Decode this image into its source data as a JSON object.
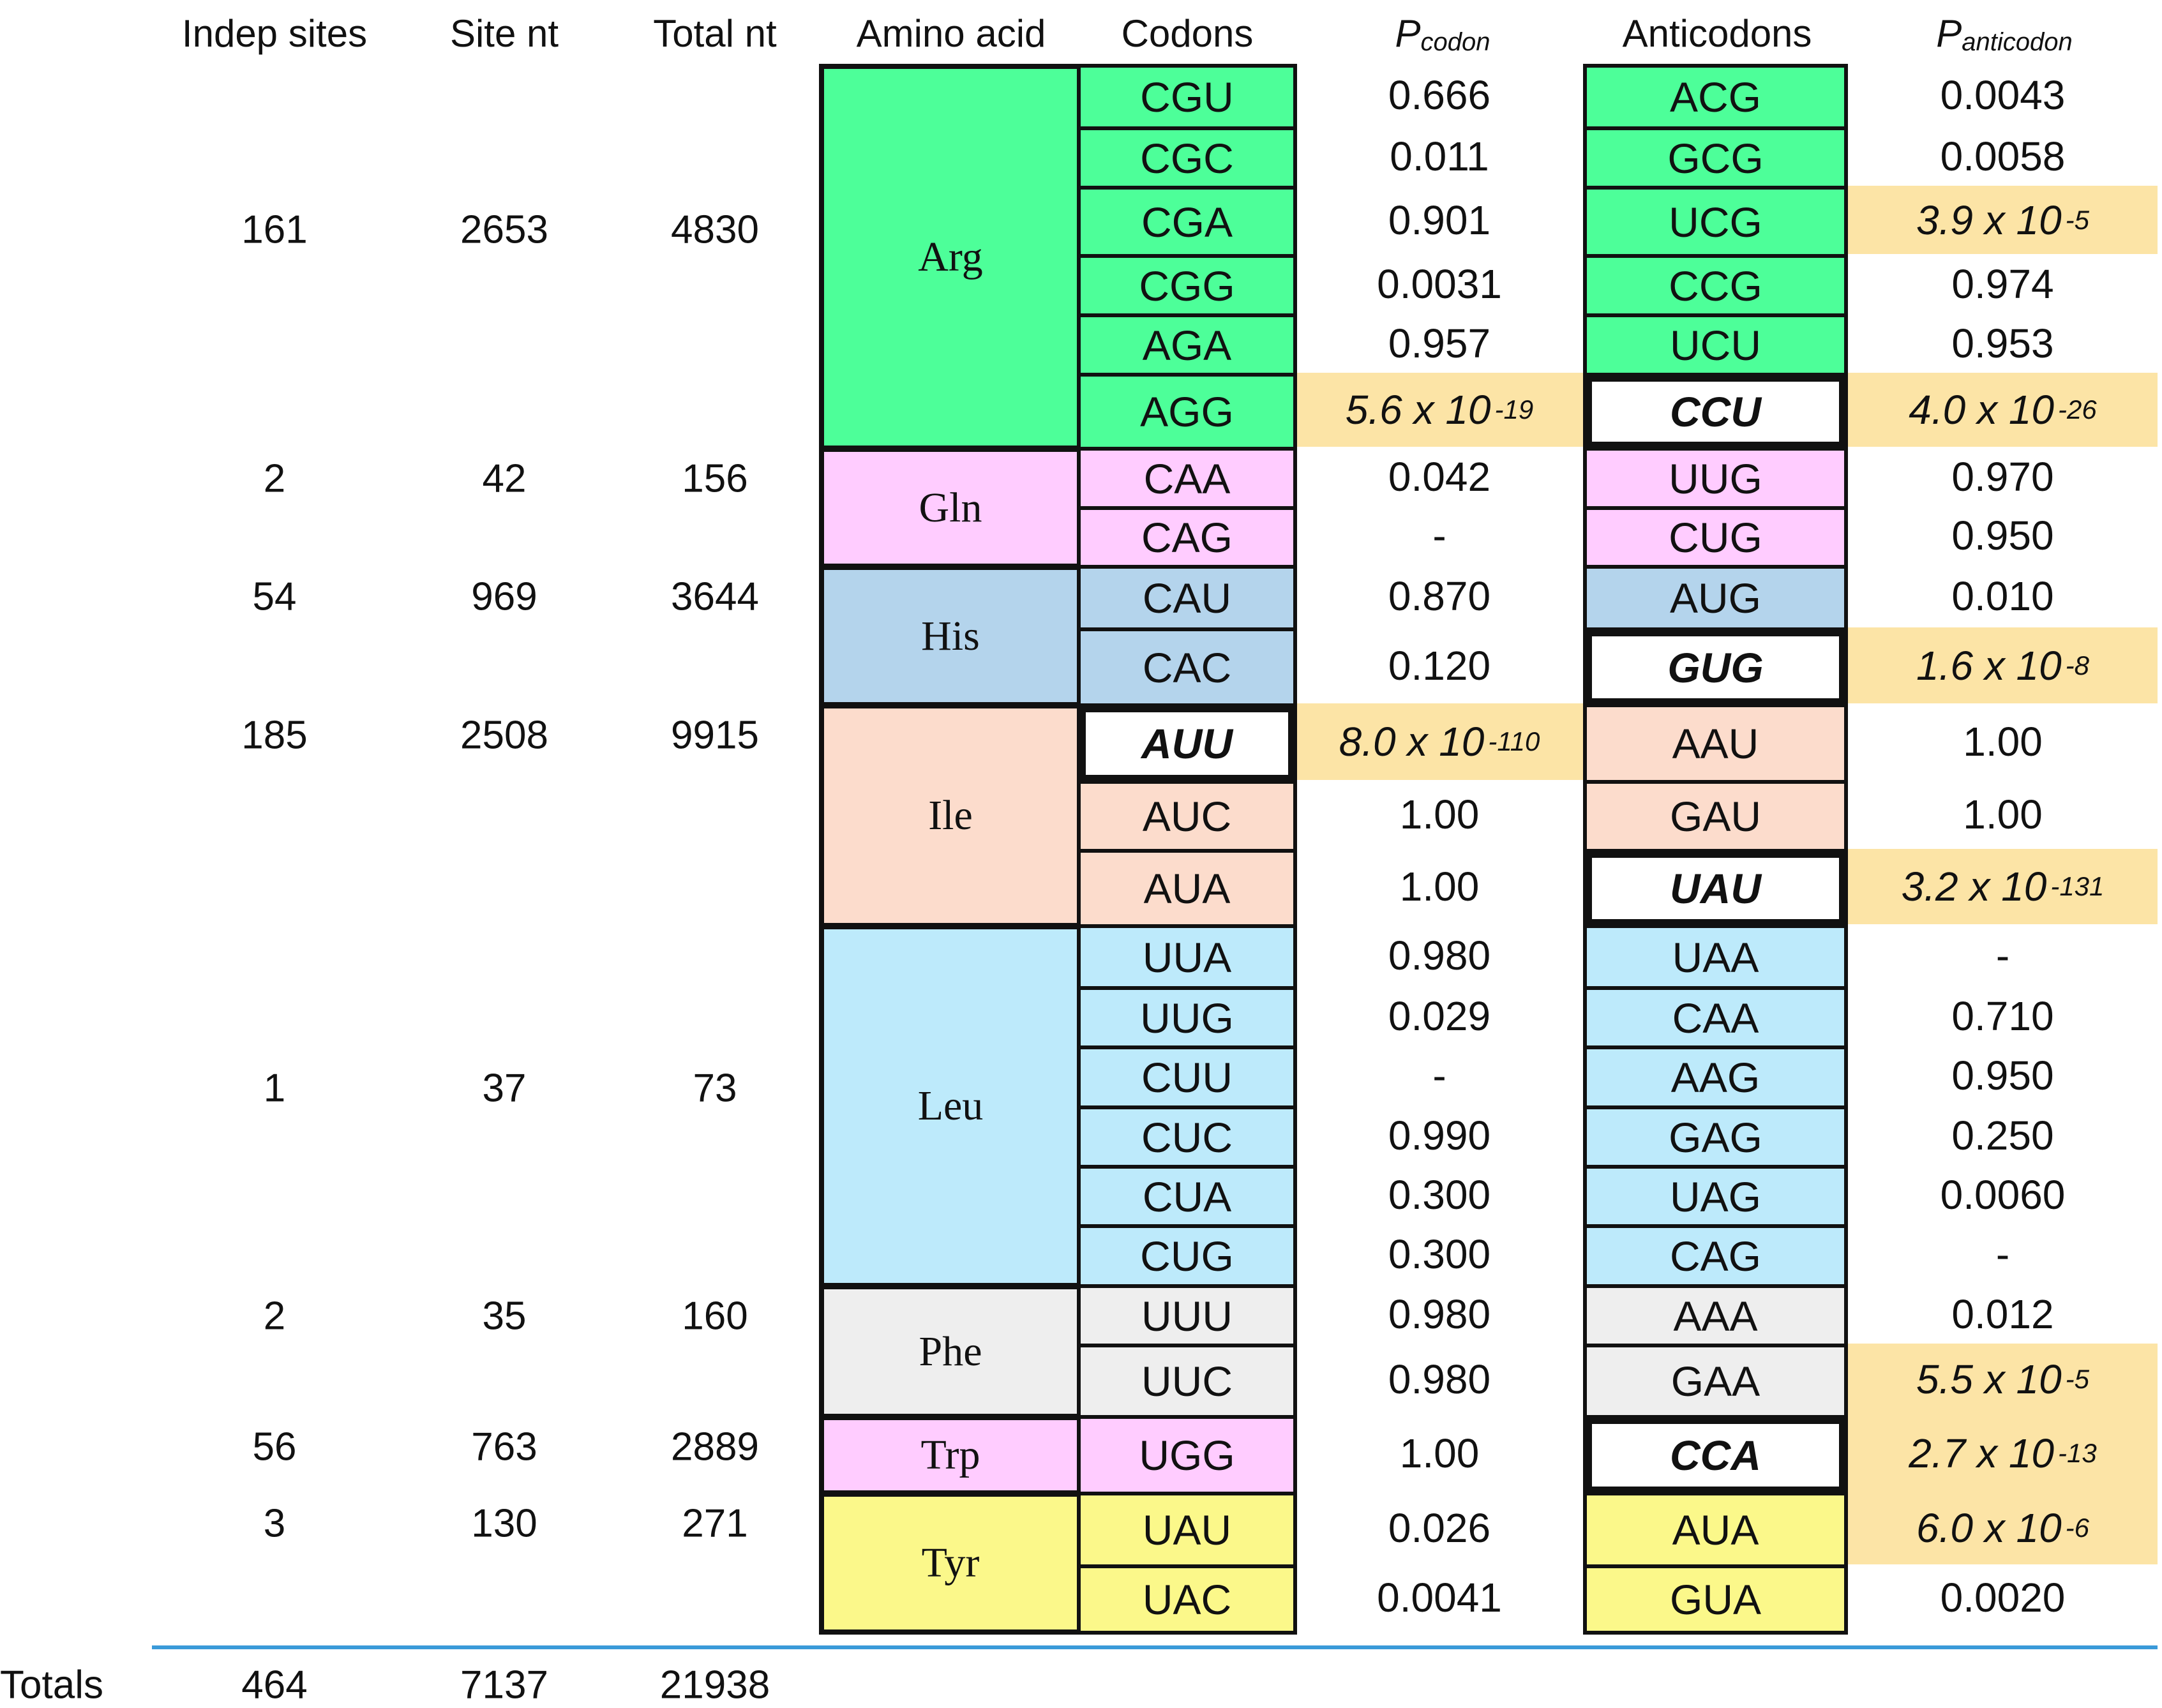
{
  "headers": {
    "indep_sites": "Indep sites",
    "site_nt": "Site nt",
    "total_nt": "Total nt",
    "amino_acid": "Amino acid",
    "codons": "Codons",
    "p_codon_main": "P",
    "p_codon_sub": "codon",
    "anticodons": "Anticodons",
    "p_anticodon_main": "P",
    "p_anticodon_sub": "anticodon"
  },
  "colors": {
    "Arg": "#4dff99",
    "Gln": "#ffccff",
    "His": "#b4d4ec",
    "Ile": "#fcdccc",
    "Leu": "#bdeafb",
    "Phe": "#eeeeee",
    "Trp": "#ffccff",
    "Tyr": "#fbf88a",
    "highlight": "#fce4a6",
    "rule": "#3a9ad9"
  },
  "groups": [
    {
      "aa": "Arg",
      "indep": "161",
      "site_nt": "2653",
      "total_nt": "4830",
      "rows": [
        {
          "codon": "CGU",
          "p_codon": "0.666",
          "anticodon": "ACG",
          "p_anticodon": "0.0043"
        },
        {
          "codon": "CGC",
          "p_codon": "0.011",
          "anticodon": "GCG",
          "p_anticodon": "0.0058"
        },
        {
          "codon": "CGA",
          "p_codon": "0.901",
          "anticodon": "UCG",
          "p_anticodon": "3.9 x 10",
          "p_anticodon_exp": "-5"
        },
        {
          "codon": "CGG",
          "p_codon": "0.0031",
          "anticodon": "CCG",
          "p_anticodon": "0.974"
        },
        {
          "codon": "AGA",
          "p_codon": "0.957",
          "anticodon": "UCU",
          "p_anticodon": "0.953"
        },
        {
          "codon": "AGG",
          "p_codon": "5.6 x 10",
          "p_codon_exp": "-19",
          "anticodon": "CCU",
          "anticodon_bold": true,
          "p_anticodon": "4.0 x 10",
          "p_anticodon_exp": "-26"
        }
      ]
    },
    {
      "aa": "Gln",
      "indep": "2",
      "site_nt": "42",
      "total_nt": "156",
      "rows": [
        {
          "codon": "CAA",
          "p_codon": "0.042",
          "anticodon": "UUG",
          "p_anticodon": "0.970"
        },
        {
          "codon": "CAG",
          "p_codon": "-",
          "anticodon": "CUG",
          "p_anticodon": "0.950"
        }
      ]
    },
    {
      "aa": "His",
      "indep": "54",
      "site_nt": "969",
      "total_nt": "3644",
      "rows": [
        {
          "codon": "CAU",
          "p_codon": "0.870",
          "anticodon": "AUG",
          "p_anticodon": "0.010"
        },
        {
          "codon": "CAC",
          "p_codon": "0.120",
          "anticodon": "GUG",
          "anticodon_bold": true,
          "p_anticodon": "1.6 x 10",
          "p_anticodon_exp": "-8"
        }
      ]
    },
    {
      "aa": "Ile",
      "indep": "185",
      "site_nt": "2508",
      "total_nt": "9915",
      "rows": [
        {
          "codon": "AUU",
          "codon_bold": true,
          "p_codon": "8.0 x 10",
          "p_codon_exp": "-110",
          "anticodon": "AAU",
          "p_anticodon": "1.00"
        },
        {
          "codon": "AUC",
          "p_codon": "1.00",
          "anticodon": "GAU",
          "p_anticodon": "1.00"
        },
        {
          "codon": "AUA",
          "p_codon": "1.00",
          "anticodon": "UAU",
          "anticodon_bold": true,
          "p_anticodon": "3.2 x 10",
          "p_anticodon_exp": "-131"
        }
      ]
    },
    {
      "aa": "Leu",
      "indep": "1",
      "site_nt": "37",
      "total_nt": "73",
      "rows": [
        {
          "codon": "UUA",
          "p_codon": "0.980",
          "anticodon": "UAA",
          "p_anticodon": "-"
        },
        {
          "codon": "UUG",
          "p_codon": "0.029",
          "anticodon": "CAA",
          "p_anticodon": "0.710"
        },
        {
          "codon": "CUU",
          "p_codon": "-",
          "anticodon": "AAG",
          "p_anticodon": "0.950"
        },
        {
          "codon": "CUC",
          "p_codon": "0.990",
          "anticodon": "GAG",
          "p_anticodon": "0.250"
        },
        {
          "codon": "CUA",
          "p_codon": "0.300",
          "anticodon": "UAG",
          "p_anticodon": "0.0060"
        },
        {
          "codon": "CUG",
          "p_codon": "0.300",
          "anticodon": "CAG",
          "p_anticodon": "-"
        }
      ]
    },
    {
      "aa": "Phe",
      "indep": "2",
      "site_nt": "35",
      "total_nt": "160",
      "rows": [
        {
          "codon": "UUU",
          "p_codon": "0.980",
          "anticodon": "AAA",
          "p_anticodon": "0.012"
        },
        {
          "codon": "UUC",
          "p_codon": "0.980",
          "anticodon": "GAA",
          "p_anticodon": "5.5 x 10",
          "p_anticodon_exp": "-5"
        }
      ]
    },
    {
      "aa": "Trp",
      "indep": "56",
      "site_nt": "763",
      "total_nt": "2889",
      "rows": [
        {
          "codon": "UGG",
          "p_codon": "1.00",
          "anticodon": "CCA",
          "anticodon_bold": true,
          "p_anticodon": "2.7 x 10",
          "p_anticodon_exp": "-13"
        }
      ]
    },
    {
      "aa": "Tyr",
      "indep": "3",
      "site_nt": "130",
      "total_nt": "271",
      "rows": [
        {
          "codon": "UAU",
          "p_codon": "0.026",
          "anticodon": "AUA",
          "p_anticodon": "6.0 x 10",
          "p_anticodon_exp": "-6"
        },
        {
          "codon": "UAC",
          "p_codon": "0.0041",
          "anticodon": "GUA",
          "p_anticodon": "0.0020"
        }
      ]
    }
  ],
  "totals": {
    "label": "Totals",
    "indep": "464",
    "site_nt": "7137",
    "total_nt": "21938"
  }
}
